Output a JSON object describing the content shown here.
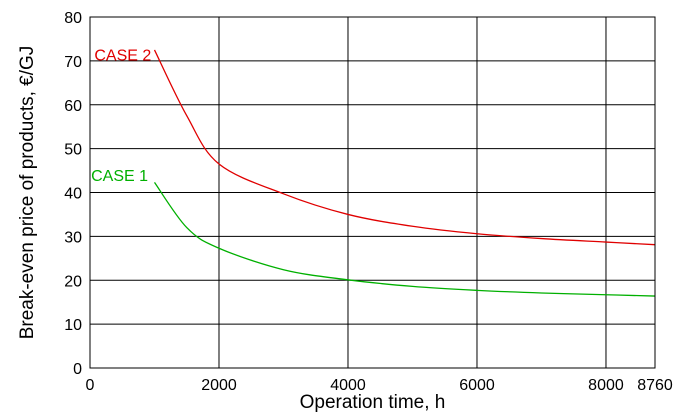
{
  "chart_data": {
    "type": "line",
    "xlabel": "Operation time, h",
    "ylabel": "Break-even price of products, €/GJ",
    "xlim": [
      0,
      8760
    ],
    "ylim": [
      0,
      80
    ],
    "x_ticks": [
      0,
      2000,
      4000,
      6000,
      8000,
      8760
    ],
    "x_tick_labels": [
      "0",
      "2000",
      "4000",
      "6000",
      "8000",
      "8760"
    ],
    "y_ticks": [
      0,
      10,
      20,
      30,
      40,
      50,
      60,
      70,
      80
    ],
    "y_tick_labels": [
      "0",
      "10",
      "20",
      "30",
      "40",
      "50",
      "60",
      "70",
      "80"
    ],
    "grid": true,
    "series": [
      {
        "name": "CASE 2",
        "color": "#e00000",
        "x": [
          1000,
          1500,
          2000,
          3000,
          4000,
          5000,
          6000,
          7000,
          8000,
          8760
        ],
        "y": [
          72.5,
          57.5,
          46.5,
          39.7,
          35.0,
          32.3,
          30.6,
          29.5,
          28.7,
          28.1
        ]
      },
      {
        "name": "CASE 1",
        "color": "#00b000",
        "x": [
          1000,
          1500,
          2000,
          3000,
          4000,
          5000,
          6000,
          7000,
          8000,
          8760
        ],
        "y": [
          42.3,
          32.0,
          27.3,
          22.4,
          20.1,
          18.6,
          17.7,
          17.1,
          16.7,
          16.4
        ]
      }
    ],
    "annotations": [
      {
        "text": "CASE 2",
        "series": "CASE 2",
        "x": 950,
        "y": 71.5
      },
      {
        "text": "CASE 1",
        "series": "CASE 1",
        "x": 900,
        "y": 44.0
      }
    ]
  }
}
